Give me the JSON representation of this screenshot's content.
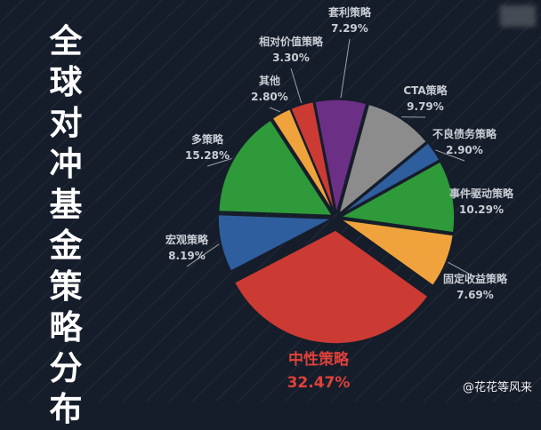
{
  "title_chars": [
    "全",
    "球",
    "对",
    "冲",
    "基",
    "金",
    "策",
    "略",
    "分",
    "布"
  ],
  "watermark": "@花花等风来",
  "colors": {
    "background": "#161d2a",
    "stripe": "#2a3343",
    "label": "#c9ced6",
    "highlight": "#e0413a"
  },
  "chart_data": {
    "type": "pie",
    "title": "全球对冲基金策略分布",
    "slices": [
      {
        "name": "套利策略",
        "value": 7.29,
        "label": "7.29%",
        "color": "#6c2f86"
      },
      {
        "name": "CTA策略",
        "value": 9.79,
        "label": "9.79%",
        "color": "#8c8c8c"
      },
      {
        "name": "不良债务策略",
        "value": 2.9,
        "label": "2.90%",
        "color": "#2f5e9e"
      },
      {
        "name": "事件驱动策略",
        "value": 10.29,
        "label": "10.29%",
        "color": "#2e9a3a"
      },
      {
        "name": "固定收益策略",
        "value": 7.69,
        "label": "7.69%",
        "color": "#f0a33c"
      },
      {
        "name": "中性策略",
        "value": 32.47,
        "label": "32.47%",
        "color": "#cc3a34"
      },
      {
        "name": "宏观策略",
        "value": 8.19,
        "label": "8.19%",
        "color": "#2f5e9e"
      },
      {
        "name": "多策略",
        "value": 15.28,
        "label": "15.28%",
        "color": "#2e9a3a"
      },
      {
        "name": "其他",
        "value": 2.8,
        "label": "2.80%",
        "color": "#f0a33c"
      },
      {
        "name": "相对价值策略",
        "value": 3.3,
        "label": "3.30%",
        "color": "#cc3a34"
      }
    ]
  }
}
